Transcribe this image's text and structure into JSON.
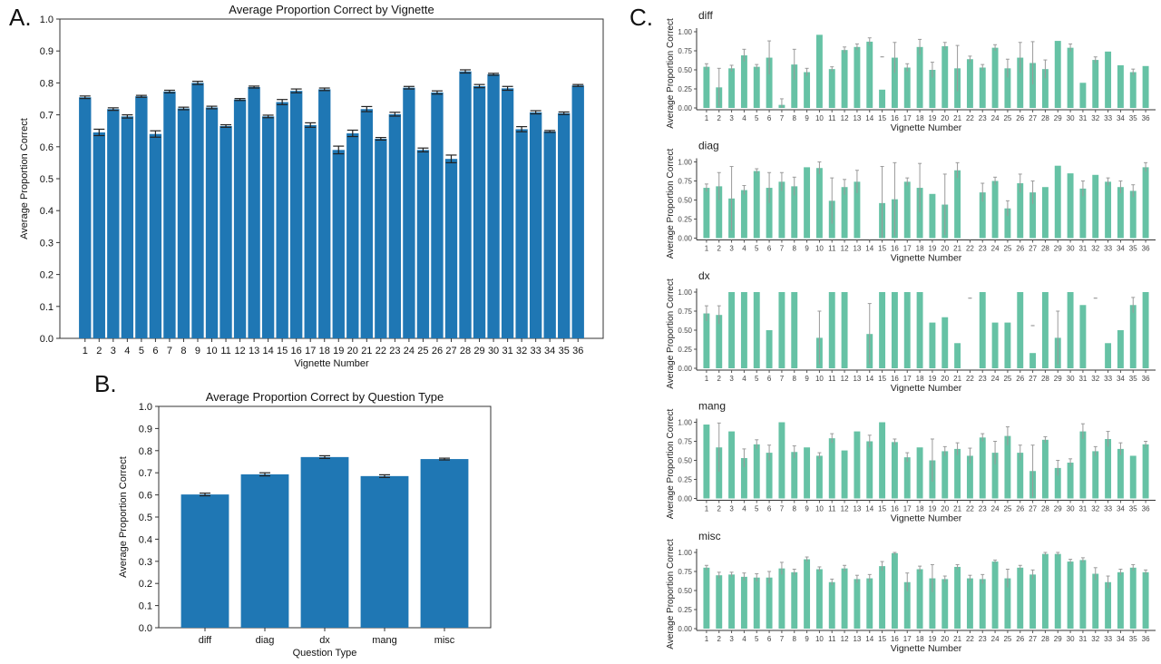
{
  "panels": {
    "a": "A.",
    "b": "B.",
    "c": "C."
  },
  "colors": {
    "blue": "#1f77b4",
    "green": "#66c2a5",
    "error": "#222222",
    "axis": "#333333"
  },
  "chart_data": [
    {
      "id": "A",
      "type": "bar",
      "title": "Average Proportion Correct by Vignette",
      "xlabel": "Vignette Number",
      "ylabel": "Average Proportion Correct",
      "ylim": [
        0,
        1
      ],
      "yticks": [
        "0.0",
        "0.1",
        "0.2",
        "0.3",
        "0.4",
        "0.5",
        "0.6",
        "0.7",
        "0.8",
        "0.9",
        "1.0"
      ],
      "categories": [
        "1",
        "2",
        "3",
        "4",
        "5",
        "6",
        "7",
        "8",
        "9",
        "10",
        "11",
        "12",
        "13",
        "14",
        "15",
        "16",
        "17",
        "18",
        "19",
        "20",
        "21",
        "22",
        "23",
        "24",
        "25",
        "26",
        "27",
        "28",
        "29",
        "30",
        "31",
        "32",
        "33",
        "34",
        "35",
        "36"
      ],
      "values": [
        0.755,
        0.645,
        0.718,
        0.695,
        0.758,
        0.64,
        0.773,
        0.72,
        0.8,
        0.723,
        0.665,
        0.748,
        0.787,
        0.695,
        0.74,
        0.775,
        0.668,
        0.78,
        0.59,
        0.642,
        0.718,
        0.625,
        0.702,
        0.785,
        0.59,
        0.77,
        0.562,
        0.836,
        0.79,
        0.827,
        0.783,
        0.655,
        0.708,
        0.648,
        0.705,
        0.792
      ],
      "errors": [
        0.004,
        0.01,
        0.004,
        0.005,
        0.003,
        0.01,
        0.004,
        0.004,
        0.005,
        0.004,
        0.004,
        0.003,
        0.003,
        0.004,
        0.008,
        0.006,
        0.007,
        0.004,
        0.012,
        0.01,
        0.008,
        0.004,
        0.006,
        0.004,
        0.006,
        0.005,
        0.012,
        0.005,
        0.005,
        0.003,
        0.006,
        0.008,
        0.005,
        0.003,
        0.004,
        0.003
      ],
      "grid": false
    },
    {
      "id": "B",
      "type": "bar",
      "title": "Average Proportion Correct by Question Type",
      "xlabel": "Question Type",
      "ylabel": "Average Proportion Correct",
      "ylim": [
        0,
        1
      ],
      "yticks": [
        "0.0",
        "0.1",
        "0.2",
        "0.3",
        "0.4",
        "0.5",
        "0.6",
        "0.7",
        "0.8",
        "0.9",
        "1.0"
      ],
      "categories": [
        "diff",
        "diag",
        "dx",
        "mang",
        "misc"
      ],
      "values": [
        0.602,
        0.693,
        0.771,
        0.685,
        0.762
      ],
      "errors": [
        0.006,
        0.007,
        0.006,
        0.006,
        0.004
      ],
      "grid": false
    },
    {
      "id": "C",
      "type": "bar",
      "xlabel": "Vignette Number",
      "ylabel": "Average Proportion Correct",
      "ylim": [
        0,
        1
      ],
      "yticks": [
        "0.00",
        "0.25",
        "0.50",
        "0.75",
        "1.00"
      ],
      "categories": [
        "1",
        "2",
        "3",
        "4",
        "5",
        "6",
        "7",
        "8",
        "9",
        "10",
        "11",
        "12",
        "13",
        "14",
        "15",
        "16",
        "17",
        "18",
        "19",
        "20",
        "21",
        "22",
        "23",
        "24",
        "25",
        "26",
        "27",
        "28",
        "29",
        "30",
        "31",
        "32",
        "33",
        "34",
        "35",
        "36"
      ],
      "facets": [
        {
          "name": "diff",
          "values": [
            0.54,
            0.27,
            0.52,
            0.69,
            0.54,
            0.66,
            0.04,
            0.57,
            0.47,
            0.96,
            0.51,
            0.76,
            0.8,
            0.87,
            0.24,
            0.66,
            0.53,
            0.8,
            0.5,
            0.81,
            0.52,
            0.64,
            0.53,
            0.79,
            0.52,
            0.66,
            0.59,
            0.51,
            0.88,
            0.79,
            0.33,
            0.63,
            0.74,
            0.56,
            0.47,
            0.55
          ],
          "errors": [
            0.04,
            0.25,
            0.04,
            0.08,
            0.03,
            0.22,
            0.08,
            0.2,
            0.05,
            0,
            0.03,
            0.04,
            0.04,
            0.05,
            0,
            0.2,
            0.05,
            0.1,
            0.1,
            0.05,
            0.3,
            0.04,
            0.04,
            0.04,
            0.12,
            0.2,
            0.28,
            0.12,
            0,
            0.05,
            0,
            0.04,
            0,
            0,
            0.04,
            0
          ],
          "markers": [
            {
              "x": 15,
              "y": 0.67
            }
          ]
        },
        {
          "name": "diag",
          "values": [
            0.66,
            0.68,
            0.52,
            0.63,
            0.88,
            0.66,
            0.74,
            0.68,
            0.93,
            0.92,
            0.49,
            0.67,
            0.74,
            0.46,
            0.51,
            0.74,
            0.66,
            0.58,
            0.44,
            0.89,
            0.6,
            0.75,
            0.39,
            0.72,
            0.6,
            0.67,
            0.95,
            0.85,
            0.65,
            0.83,
            0.74,
            0.67,
            0.62,
            0.93
          ],
          "errors": [
            0.05,
            0.18,
            0.42,
            0.06,
            0.03,
            0.2,
            0.12,
            0.12,
            0,
            0.08,
            0.3,
            0.1,
            0.15,
            0.48,
            0.48,
            0.05,
            0.32,
            0,
            0.4,
            0.1,
            0.12,
            0.05,
            0.1,
            0.12,
            0.15,
            0,
            0,
            0,
            0.1,
            0,
            0.05,
            0.08,
            0.08,
            0.06
          ],
          "x": [
            "1",
            "2",
            "3",
            "4",
            "5",
            "6",
            "7",
            "8",
            "9",
            "10",
            "11",
            "12",
            "13",
            "15",
            "16",
            "17",
            "18",
            "19",
            "20",
            "21",
            "23",
            "24",
            "25",
            "26",
            "27",
            "28",
            "29",
            "30",
            "31",
            "32",
            "33",
            "34",
            "35",
            "36"
          ]
        },
        {
          "name": "dx",
          "values": [
            0.72,
            0.7,
            1.0,
            1.0,
            1.0,
            0.5,
            1.0,
            1.0,
            0.4,
            1.0,
            1.0,
            0.45,
            1.0,
            1.0,
            1.0,
            1.0,
            0.6,
            0.67,
            0.33,
            1.0,
            0.6,
            0.6,
            1.0,
            0.2,
            1.0,
            0.4,
            1.0,
            0.83,
            0.33,
            0.5,
            0.83,
            1.0
          ],
          "errors": [
            0.1,
            0.12,
            0,
            0,
            0,
            0,
            0,
            0,
            0.35,
            0,
            0,
            0.4,
            0,
            0,
            0,
            0,
            0,
            0,
            0,
            0,
            0,
            0,
            0,
            0,
            0,
            0.35,
            0,
            0,
            0,
            0,
            0.1,
            0
          ],
          "x": [
            "1",
            "2",
            "3",
            "4",
            "5",
            "6",
            "7",
            "8",
            "10",
            "11",
            "12",
            "14",
            "15",
            "16",
            "17",
            "18",
            "19",
            "20",
            "21",
            "23",
            "24",
            "25",
            "26",
            "27",
            "28",
            "29",
            "30",
            "31",
            "33",
            "34",
            "35",
            "36"
          ],
          "markers": [
            {
              "x": 22,
              "y": 0.92
            },
            {
              "x": 27,
              "y": 0.56
            },
            {
              "x": 32,
              "y": 0.92
            }
          ]
        },
        {
          "name": "mang",
          "values": [
            0.97,
            0.67,
            0.88,
            0.53,
            0.71,
            0.6,
            1.0,
            0.61,
            0.67,
            0.56,
            0.79,
            0.63,
            0.88,
            0.75,
            1.0,
            0.74,
            0.54,
            0.67,
            0.5,
            0.62,
            0.65,
            0.56,
            0.8,
            0.6,
            0.82,
            0.6,
            0.36,
            0.77,
            0.4,
            0.47,
            0.88,
            0.62,
            0.78,
            0.65,
            0.56,
            0.71
          ],
          "errors": [
            0,
            0.32,
            0,
            0.12,
            0.06,
            0.1,
            0,
            0.08,
            0,
            0.04,
            0.06,
            0,
            0,
            0.08,
            0,
            0.04,
            0.06,
            0,
            0.28,
            0.06,
            0.08,
            0.1,
            0.05,
            0.15,
            0.12,
            0.1,
            0.34,
            0.04,
            0.1,
            0.05,
            0.1,
            0.06,
            0.1,
            0.08,
            0,
            0.04
          ]
        },
        {
          "name": "misc",
          "values": [
            0.8,
            0.7,
            0.71,
            0.68,
            0.67,
            0.67,
            0.79,
            0.74,
            0.91,
            0.78,
            0.61,
            0.79,
            0.65,
            0.66,
            0.82,
            0.99,
            0.61,
            0.78,
            0.66,
            0.65,
            0.81,
            0.66,
            0.65,
            0.88,
            0.66,
            0.8,
            0.71,
            0.98,
            0.98,
            0.88,
            0.9,
            0.72,
            0.61,
            0.74,
            0.8,
            0.74
          ],
          "errors": [
            0.03,
            0.04,
            0.03,
            0.05,
            0.05,
            0.08,
            0.08,
            0.04,
            0.03,
            0.03,
            0.04,
            0.04,
            0.05,
            0.05,
            0.06,
            0.02,
            0.12,
            0.04,
            0.18,
            0.04,
            0.03,
            0.04,
            0.06,
            0.02,
            0.12,
            0.03,
            0.06,
            0.02,
            0.02,
            0.03,
            0.03,
            0.08,
            0.08,
            0.04,
            0.04,
            0.03
          ]
        }
      ]
    }
  ]
}
